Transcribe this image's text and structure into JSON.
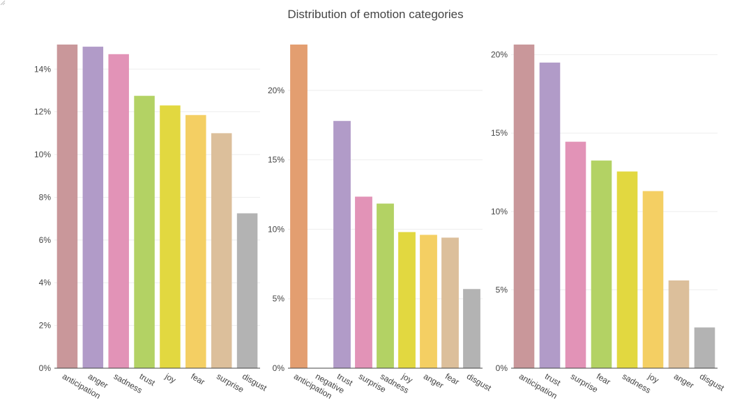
{
  "chart_data": {
    "title": "Distribution of emotion categories",
    "type": "bar",
    "panels": [
      {
        "categories": [
          "anticipation",
          "anger",
          "sadness",
          "trust",
          "joy",
          "fear",
          "surprise",
          "disgust"
        ],
        "values": [
          15.15,
          15.05,
          14.7,
          12.75,
          12.3,
          11.85,
          11.0,
          7.25
        ],
        "colors": [
          "#c9979a",
          "#b19bc8",
          "#e293b7",
          "#b3d264",
          "#e2d840",
          "#f4cf63",
          "#dcbf9b",
          "#b3b3b3"
        ],
        "ylim": [
          0,
          15.15
        ],
        "yticks": [
          0,
          2,
          4,
          6,
          8,
          10,
          12,
          14
        ],
        "ytick_labels": [
          "0%",
          "2%",
          "4%",
          "6%",
          "8%",
          "10%",
          "12%",
          "14%"
        ]
      },
      {
        "categories": [
          "anticipation",
          "negative",
          "trust",
          "surprise",
          "sadness",
          "joy",
          "anger",
          "fear",
          "disgust"
        ],
        "values": [
          23.3,
          0,
          17.8,
          12.35,
          11.85,
          9.8,
          9.6,
          9.4,
          5.7
        ],
        "colors": [
          "#e39e70",
          "#ffffff",
          "#b19bc8",
          "#e293b7",
          "#b3d264",
          "#e2d840",
          "#f4cf63",
          "#dcbf9b",
          "#b3b3b3"
        ],
        "ylim": [
          0,
          23.3
        ],
        "yticks": [
          0,
          5,
          10,
          15,
          20
        ],
        "ytick_labels": [
          "0%",
          "5%",
          "10%",
          "15%",
          "20%"
        ]
      },
      {
        "categories": [
          "anticipation",
          "trust",
          "surprise",
          "fear",
          "sadness",
          "joy",
          "anger",
          "disgust"
        ],
        "values": [
          20.65,
          19.5,
          14.45,
          13.25,
          12.55,
          11.3,
          5.6,
          2.6
        ],
        "colors": [
          "#c9979a",
          "#b19bc8",
          "#e293b7",
          "#b3d264",
          "#e2d840",
          "#f4cf63",
          "#dcbf9b",
          "#b3b3b3"
        ],
        "ylim": [
          0,
          20.65
        ],
        "yticks": [
          0,
          5,
          10,
          15,
          20
        ],
        "ytick_labels": [
          "0%",
          "5%",
          "10%",
          "15%",
          "20%"
        ]
      }
    ]
  }
}
